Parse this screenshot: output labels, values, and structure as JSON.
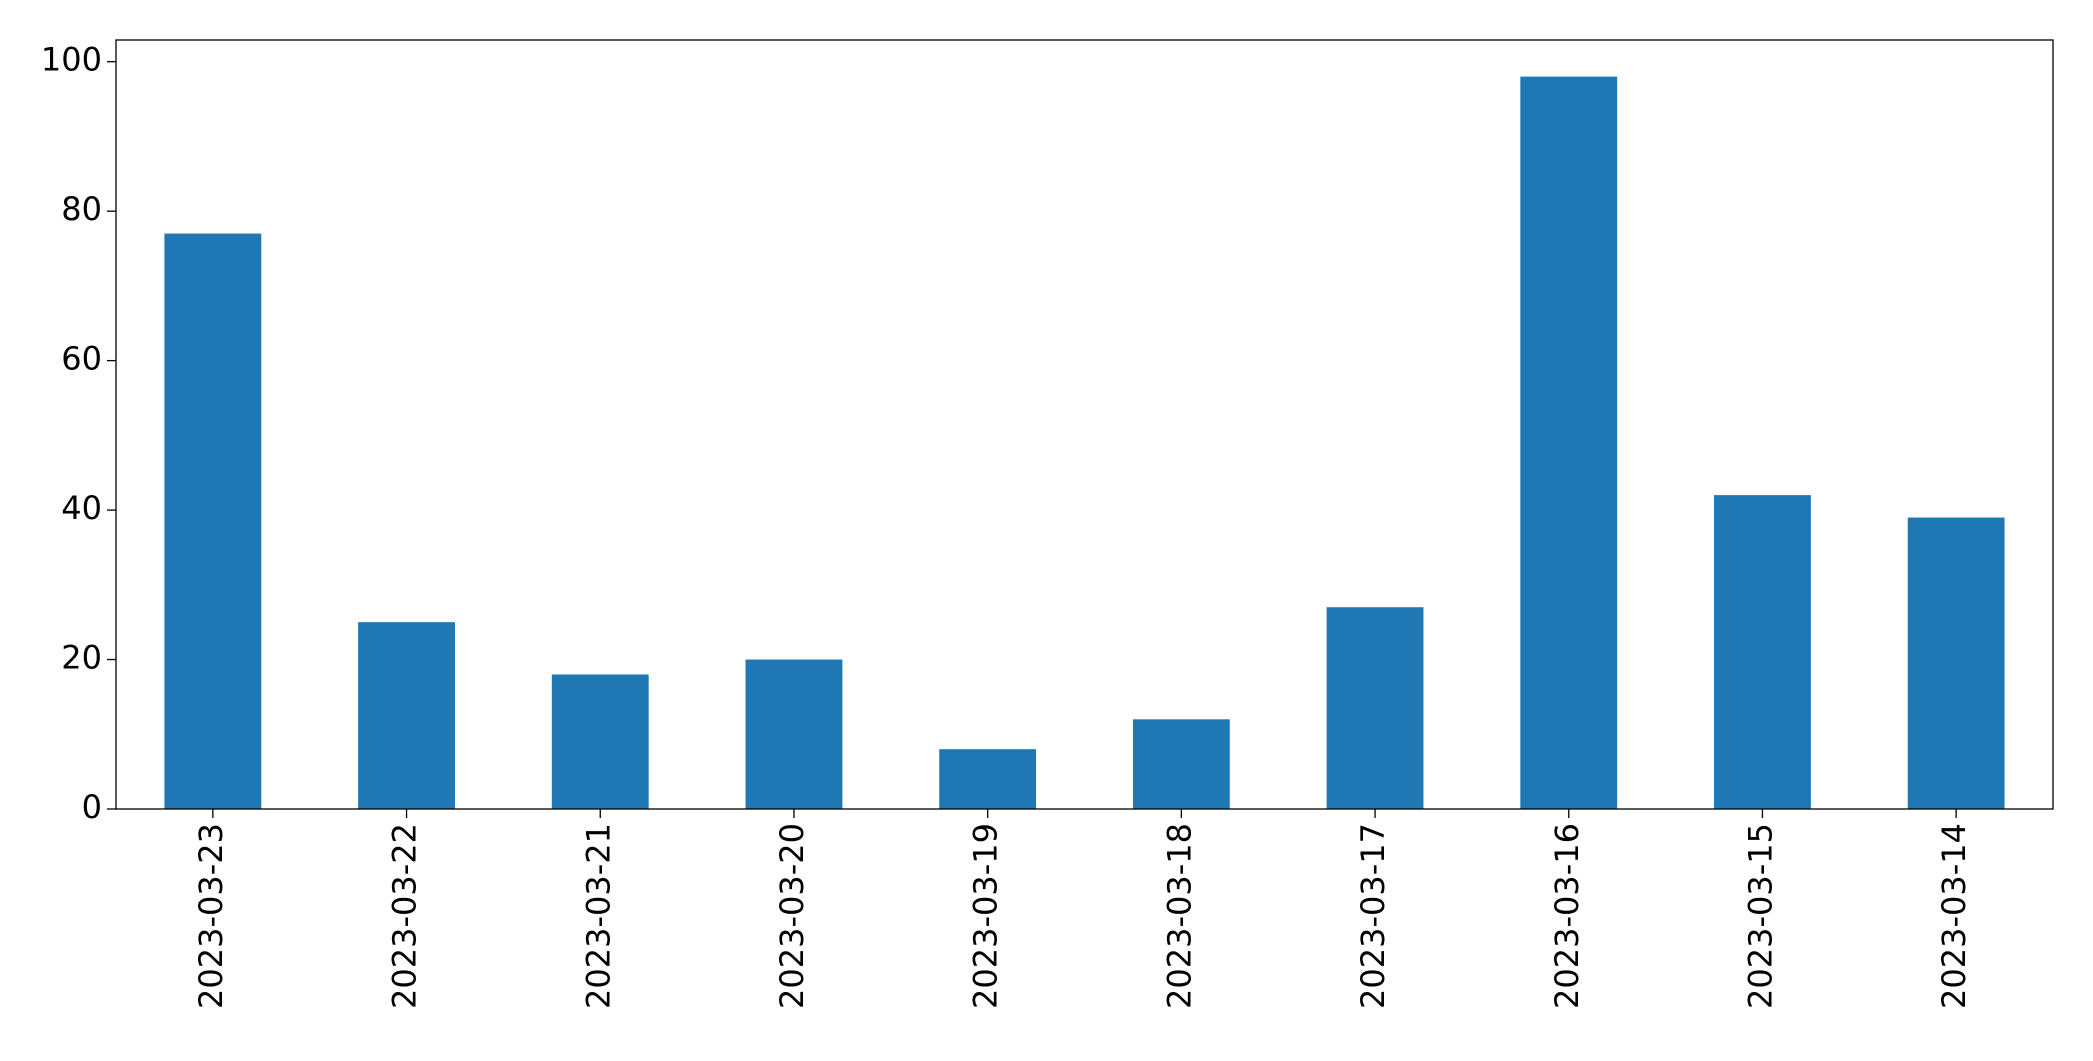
{
  "chart_data": {
    "type": "bar",
    "categories": [
      "2023-03-23",
      "2023-03-22",
      "2023-03-21",
      "2023-03-20",
      "2023-03-19",
      "2023-03-18",
      "2023-03-17",
      "2023-03-16",
      "2023-03-15",
      "2023-03-14"
    ],
    "values": [
      77,
      25,
      18,
      20,
      8,
      12,
      27,
      98,
      42,
      39
    ],
    "color": "#1f77b4",
    "ylim": [
      0,
      102.9
    ],
    "yticks": [
      0,
      20,
      40,
      60,
      80,
      100
    ],
    "grid": false
  }
}
